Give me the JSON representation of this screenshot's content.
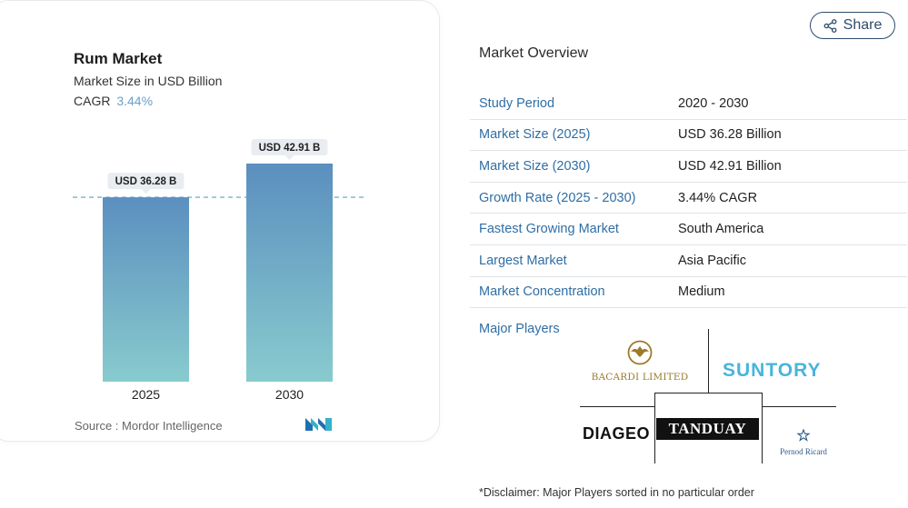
{
  "card": {
    "title": "Rum Market",
    "subtitle": "Market Size in USD Billion",
    "cagr_label": "CAGR",
    "cagr_value": "3.44%",
    "source": "Source :  Mordor Intelligence",
    "brand_logo_icon": "mordor-intelligence-logo-icon"
  },
  "chart_data": {
    "type": "bar",
    "categories": [
      "2025",
      "2030"
    ],
    "values": [
      36.28,
      42.91
    ],
    "value_labels": [
      "USD 36.28 B",
      "USD 42.91 B"
    ],
    "title": "Rum Market",
    "ylabel": "Market Size in USD Billion",
    "ylim": [
      0,
      42.91
    ],
    "reference_line": 36.28,
    "grid": false,
    "colors": {
      "bar_top": "#5b8fbf",
      "bar_bottom": "#88cbce",
      "label_bg": "#e9edf1",
      "dashed": "#7eb0c8"
    }
  },
  "share": {
    "label": "Share",
    "icon": "share-icon"
  },
  "overview": {
    "title": "Market Overview",
    "rows": [
      {
        "key": "Study Period",
        "value": "2020 - 2030"
      },
      {
        "key": "Market Size (2025)",
        "value": "USD 36.28 Billion"
      },
      {
        "key": "Market Size (2030)",
        "value": "USD 42.91 Billion"
      },
      {
        "key": "Growth Rate (2025 - 2030)",
        "value": "3.44% CAGR"
      },
      {
        "key": "Fastest Growing Market",
        "value": "South America"
      },
      {
        "key": "Largest Market",
        "value": "Asia Pacific"
      },
      {
        "key": "Market Concentration",
        "value": "Medium"
      }
    ],
    "major_players_label": "Major Players",
    "players": {
      "bacardi": "BACARDI LIMITED",
      "suntory": "SUNTORY",
      "diageo": "DIAGEO",
      "tanduay": "TANDUAY",
      "pernod": "Pernod Ricard"
    },
    "disclaimer": "*Disclaimer: Major Players sorted in no particular order"
  },
  "colors": {
    "link": "#2f6ea5",
    "accent_blue": "#49b4dd",
    "share_border": "#2d4b6b"
  }
}
